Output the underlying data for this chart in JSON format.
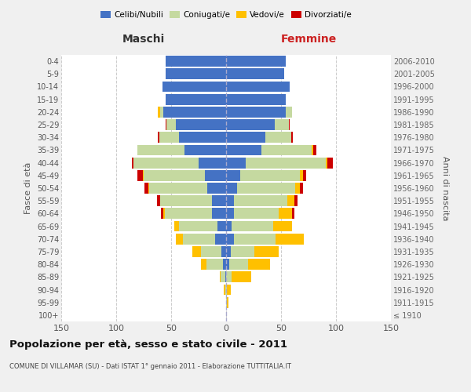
{
  "age_groups": [
    "100+",
    "95-99",
    "90-94",
    "85-89",
    "80-84",
    "75-79",
    "70-74",
    "65-69",
    "60-64",
    "55-59",
    "50-54",
    "45-49",
    "40-44",
    "35-39",
    "30-34",
    "25-29",
    "20-24",
    "15-19",
    "10-14",
    "5-9",
    "0-4"
  ],
  "birth_years": [
    "≤ 1910",
    "1911-1915",
    "1916-1920",
    "1921-1925",
    "1926-1930",
    "1931-1935",
    "1936-1940",
    "1941-1945",
    "1946-1950",
    "1951-1955",
    "1956-1960",
    "1961-1965",
    "1966-1970",
    "1971-1975",
    "1976-1980",
    "1981-1985",
    "1986-1990",
    "1991-1995",
    "1996-2000",
    "2001-2005",
    "2006-2010"
  ],
  "colors": {
    "celibe": "#4472c4",
    "coniugato": "#c5d9a0",
    "vedovo": "#ffc000",
    "divorziato": "#cc0000"
  },
  "maschi": {
    "celibe": [
      0,
      0,
      0,
      1,
      3,
      4,
      10,
      8,
      13,
      13,
      17,
      19,
      25,
      38,
      43,
      46,
      57,
      55,
      58,
      55,
      55
    ],
    "coniugato": [
      0,
      0,
      1,
      4,
      15,
      19,
      29,
      35,
      43,
      47,
      53,
      56,
      59,
      43,
      18,
      8,
      3,
      0,
      0,
      0,
      0
    ],
    "vedovo": [
      0,
      0,
      1,
      1,
      5,
      8,
      7,
      4,
      1,
      0,
      1,
      1,
      0,
      0,
      0,
      0,
      2,
      0,
      0,
      0,
      0
    ],
    "divorziato": [
      0,
      0,
      0,
      0,
      0,
      0,
      0,
      0,
      2,
      3,
      3,
      5,
      2,
      0,
      1,
      1,
      0,
      0,
      0,
      0,
      0
    ]
  },
  "femmine": {
    "nubile": [
      0,
      0,
      0,
      0,
      3,
      4,
      7,
      5,
      7,
      7,
      10,
      13,
      18,
      32,
      36,
      44,
      54,
      54,
      58,
      53,
      54
    ],
    "coniugata": [
      0,
      1,
      1,
      5,
      17,
      22,
      38,
      38,
      41,
      49,
      53,
      54,
      73,
      46,
      23,
      13,
      6,
      0,
      0,
      0,
      0
    ],
    "vedova": [
      0,
      1,
      3,
      18,
      20,
      22,
      26,
      17,
      12,
      6,
      4,
      3,
      1,
      1,
      0,
      0,
      0,
      0,
      0,
      0,
      0
    ],
    "divorziata": [
      0,
      0,
      0,
      0,
      0,
      0,
      0,
      0,
      2,
      3,
      3,
      3,
      5,
      3,
      2,
      1,
      0,
      0,
      0,
      0,
      0
    ]
  },
  "xlim": 150,
  "title": "Popolazione per età, sesso e stato civile - 2011",
  "subtitle": "COMUNE DI VILLAMAR (SU) - Dati ISTAT 1° gennaio 2011 - Elaborazione TUTTITALIA.IT",
  "ylabel_left": "Fasce di età",
  "ylabel_right": "Anni di nascita",
  "xlabel_left": "Maschi",
  "xlabel_right": "Femmine",
  "bg_color": "#f0f0f0",
  "plot_bg": "#ffffff",
  "grid_color": "#cccccc"
}
